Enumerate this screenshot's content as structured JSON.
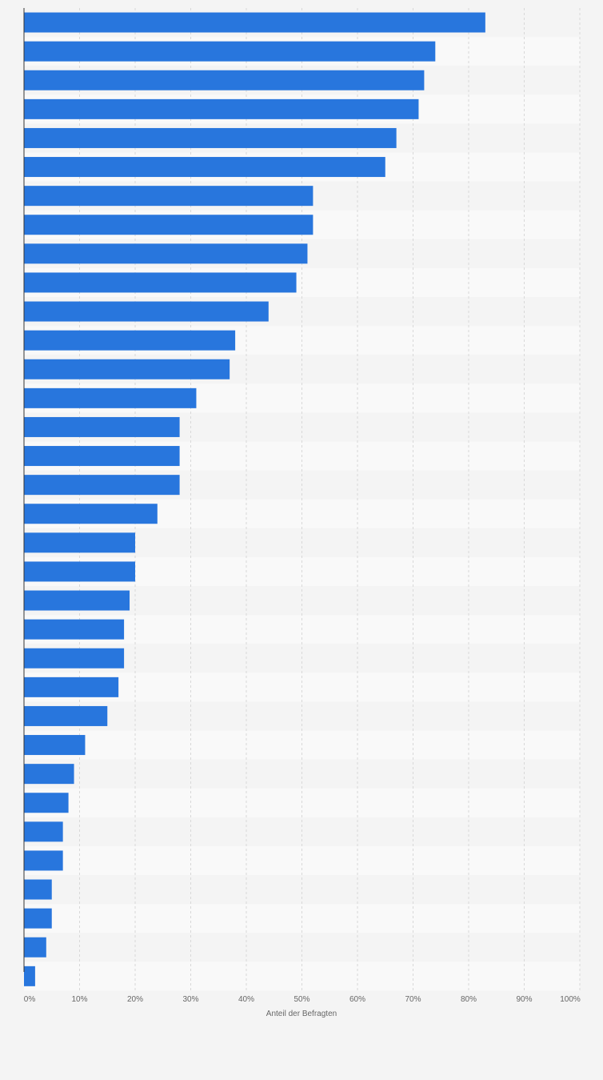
{
  "chart_data": {
    "type": "bar",
    "orientation": "horizontal",
    "title": "",
    "xlabel": "Anteil der Befragten",
    "ylabel": "",
    "xlim": [
      0,
      100
    ],
    "x_ticks": [
      "0%",
      "10%",
      "20%",
      "30%",
      "40%",
      "50%",
      "60%",
      "70%",
      "80%",
      "90%",
      "100%"
    ],
    "grid": true,
    "legend": "none",
    "bar_color": "#2876dd",
    "values": [
      83,
      74,
      72,
      71,
      67,
      65,
      52,
      52,
      51,
      49,
      44,
      38,
      37,
      31,
      28,
      28,
      28,
      24,
      20,
      20,
      19,
      18,
      18,
      17,
      15,
      11,
      9,
      8,
      7,
      7,
      5,
      5,
      4,
      2
    ]
  }
}
